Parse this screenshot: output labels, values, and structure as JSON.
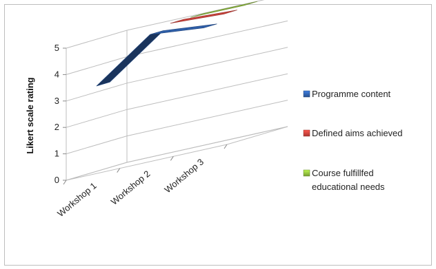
{
  "chart_data": {
    "type": "line",
    "style": "3d-ribbon",
    "title": "",
    "xlabel": "",
    "ylabel": "Likert scale rating",
    "ylim": [
      0,
      5
    ],
    "yticks": [
      0,
      1,
      2,
      3,
      4,
      5
    ],
    "categories": [
      "Workshop 1",
      "Workshop 2",
      "Workshop 3"
    ],
    "grid": true,
    "legend_position": "right",
    "series": [
      {
        "name": "Programme content",
        "color": "#2f5fa8",
        "values": [
          3.3,
          4.8,
          4.6
        ]
      },
      {
        "name": "Defined aims achieved",
        "color": "#c8413a",
        "values": [
          null,
          5.0,
          4.9
        ]
      },
      {
        "name": "Course fulfillfed educational needs",
        "color": "#8cb83c",
        "values": [
          null,
          5.0,
          5.0
        ]
      }
    ]
  }
}
